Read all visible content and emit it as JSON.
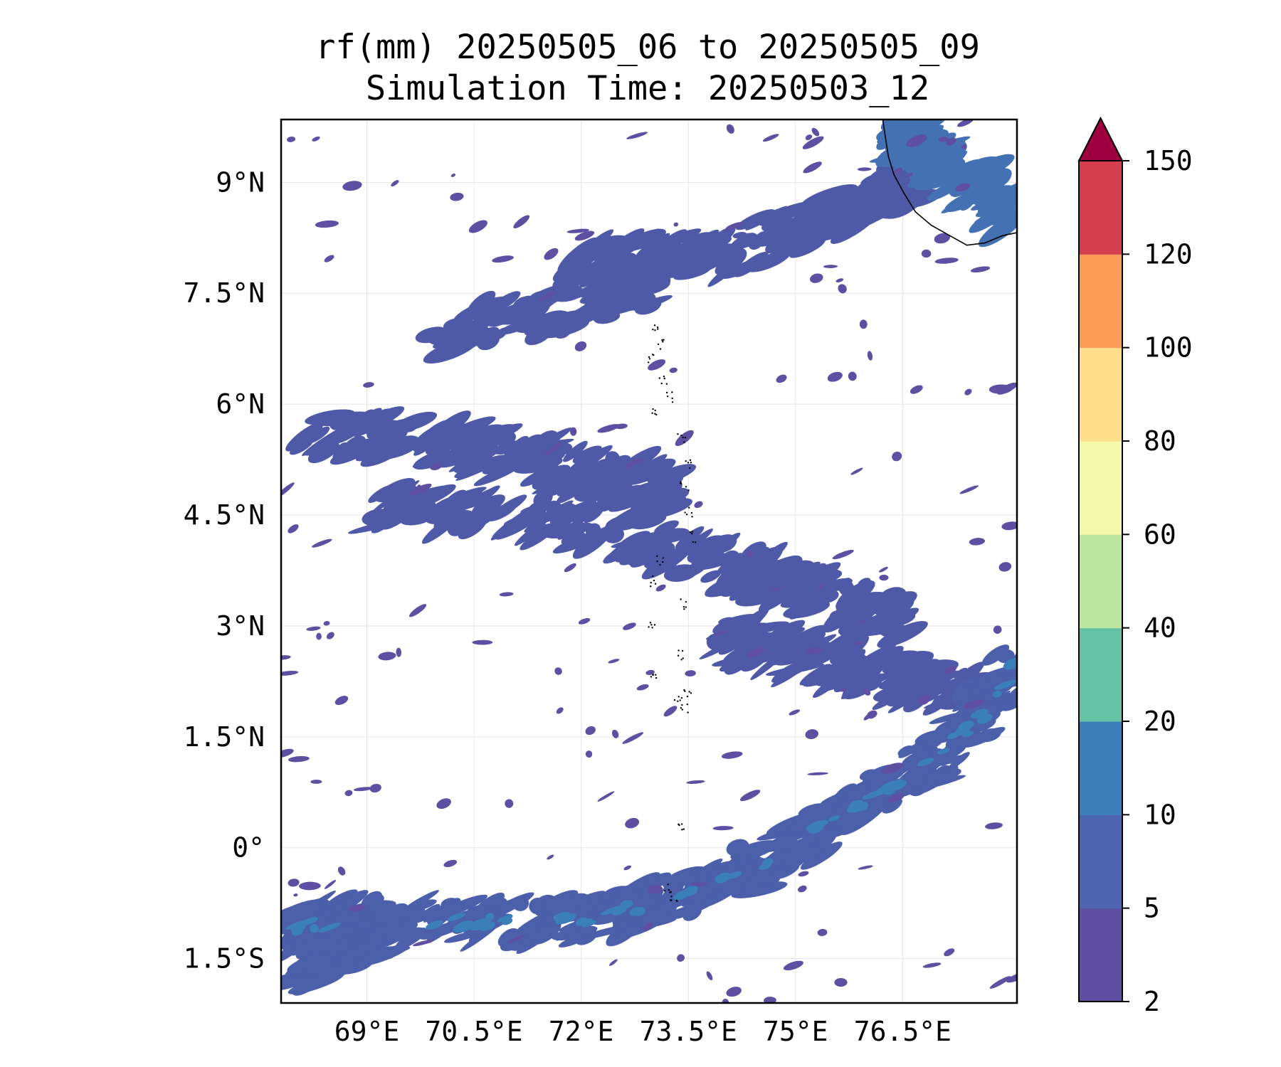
{
  "title": {
    "line1": "rf(mm) 20250505_06 to 20250505_09",
    "line2": "Simulation Time: 20250503_12"
  },
  "map": {
    "lon_range": [
      67.8,
      78.1
    ],
    "lat_range": [
      -2.1,
      9.85
    ],
    "lon_ticks": [
      {
        "value": 69,
        "label": "69°E"
      },
      {
        "value": 70.5,
        "label": "70.5°E"
      },
      {
        "value": 72,
        "label": "72°E"
      },
      {
        "value": 73.5,
        "label": "73.5°E"
      },
      {
        "value": 75,
        "label": "75°E"
      },
      {
        "value": 76.5,
        "label": "76.5°E"
      }
    ],
    "lat_ticks": [
      {
        "value": 9,
        "label": "9°N"
      },
      {
        "value": 7.5,
        "label": "7.5°N"
      },
      {
        "value": 6,
        "label": "6°N"
      },
      {
        "value": 4.5,
        "label": "4.5°N"
      },
      {
        "value": 3,
        "label": "3°N"
      },
      {
        "value": 1.5,
        "label": "1.5°N"
      },
      {
        "value": 0,
        "label": "0°"
      },
      {
        "value": -1.5,
        "label": "1.5°S"
      }
    ],
    "gridlines": true
  },
  "colorbar": {
    "extend": "max",
    "extend_color": "#9e0142",
    "levels": [
      "2",
      "5",
      "10",
      "20",
      "40",
      "60",
      "80",
      "100",
      "120",
      "150"
    ],
    "colors": [
      "#5e4fa2",
      "#4e64b0",
      "#3a7fba",
      "#66c2a5",
      "#bce6a0",
      "#f4f8ab",
      "#fddf8b",
      "#f99d59",
      "#d53e4f"
    ]
  },
  "rain_bands": [
    {
      "name": "northern-band",
      "color": "#4e5aa8",
      "points": [
        [
          72.0,
          7.9
        ],
        [
          73.0,
          7.95
        ],
        [
          74.0,
          8.05
        ],
        [
          75.0,
          8.35
        ],
        [
          76.0,
          8.7
        ],
        [
          76.8,
          9.1
        ]
      ]
    },
    {
      "name": "middle-band",
      "color": "#4e5aa8",
      "points": [
        [
          68.3,
          5.6
        ],
        [
          69.5,
          5.55
        ],
        [
          70.5,
          5.4
        ],
        [
          71.5,
          5.25
        ],
        [
          72.5,
          5.0
        ],
        [
          73.3,
          4.75
        ]
      ]
    },
    {
      "name": "middle-band-2",
      "color": "#4e5aa8",
      "points": [
        [
          69.0,
          4.6
        ],
        [
          70.5,
          4.55
        ],
        [
          72.0,
          4.35
        ],
        [
          73.3,
          4.05
        ],
        [
          74.5,
          3.7
        ],
        [
          75.5,
          3.4
        ],
        [
          76.5,
          3.1
        ]
      ]
    },
    {
      "name": "southeast-band",
      "color": "#4e5aa8",
      "points": [
        [
          74.0,
          2.85
        ],
        [
          75.0,
          2.6
        ],
        [
          76.0,
          2.35
        ],
        [
          76.8,
          2.2
        ],
        [
          77.6,
          2.0
        ]
      ]
    },
    {
      "name": "equatorial-band",
      "color": "#4c5fab",
      "points": [
        [
          67.9,
          -1.1
        ],
        [
          69.0,
          -0.95
        ],
        [
          70.5,
          -1.0
        ],
        [
          72.0,
          -1.0
        ],
        [
          73.0,
          -0.75
        ],
        [
          74.0,
          -0.45
        ],
        [
          75.0,
          0.05
        ],
        [
          75.8,
          0.55
        ],
        [
          76.6,
          0.95
        ],
        [
          77.4,
          1.6
        ],
        [
          78.1,
          2.5
        ]
      ]
    },
    {
      "name": "southern-band",
      "color": "#4c5fab",
      "points": [
        [
          67.9,
          -1.7
        ],
        [
          68.6,
          -1.4
        ],
        [
          69.3,
          -1.15
        ]
      ]
    },
    {
      "name": "northern-band-2",
      "color": "#4e5aa8",
      "points": [
        [
          70.0,
          6.9
        ],
        [
          71.0,
          7.15
        ],
        [
          72.2,
          7.35
        ],
        [
          73.0,
          7.5
        ]
      ]
    },
    {
      "name": "kerala-rain",
      "color": "#4470b4",
      "points": [
        [
          76.3,
          9.7
        ],
        [
          76.8,
          9.4
        ],
        [
          77.4,
          9.0
        ],
        [
          77.9,
          8.6
        ]
      ]
    }
  ]
}
